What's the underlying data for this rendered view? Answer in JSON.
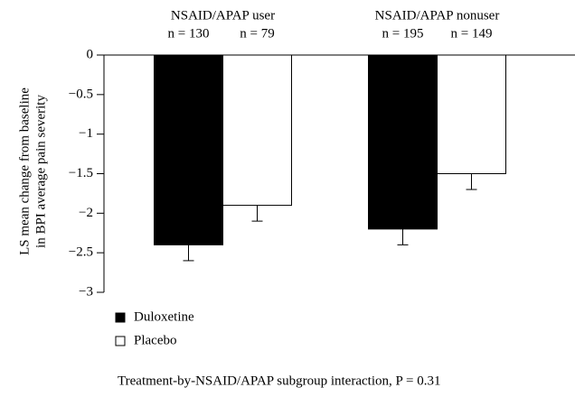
{
  "chart_data": {
    "type": "bar",
    "y_label": [
      "LS mean change from baseline",
      "in BPI average pain severity"
    ],
    "categories": [
      "NSAID/APAP user",
      "NSAID/APAP nonuser"
    ],
    "series": [
      {
        "name": "Duloxetine",
        "color": "#000000",
        "values": [
          -2.4,
          -2.2
        ],
        "errors": [
          0.2,
          0.2
        ],
        "n_labels": [
          "n = 130",
          "n = 195"
        ]
      },
      {
        "name": "Placebo",
        "color": "#ffffff",
        "values": [
          -1.9,
          -1.5
        ],
        "errors": [
          0.2,
          0.2
        ],
        "n_labels": [
          "n = 79",
          "n = 149"
        ]
      }
    ],
    "ylim": [
      -3,
      0
    ],
    "yticks": [
      0,
      {
        "value": -0.5,
        "label": "−0.5"
      },
      {
        "value": -1,
        "label": "−1"
      },
      {
        "value": -1.5,
        "label": "−1.5"
      },
      {
        "value": -2,
        "label": "−2"
      },
      {
        "value": -2.5,
        "label": "−2.5"
      },
      {
        "value": -3,
        "label": "−3"
      }
    ],
    "footnote": "Treatment-by-NSAID/APAP subgroup interaction, P = 0.31"
  }
}
